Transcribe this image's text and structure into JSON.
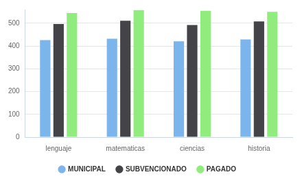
{
  "chart_data": {
    "type": "bar",
    "categories": [
      "lenguaje",
      "matematicas",
      "ciencias",
      "historia"
    ],
    "series": [
      {
        "name": "MUNICIPAL",
        "color": "#7cb5ec",
        "values": [
          426,
          432,
          421,
          429
        ]
      },
      {
        "name": "SUBVENCIONADO",
        "color": "#434348",
        "values": [
          497,
          511,
          492,
          508
        ]
      },
      {
        "name": "PAGADO",
        "color": "#90ed7d",
        "values": [
          545,
          558,
          555,
          550
        ]
      }
    ],
    "ylim": [
      0,
      560
    ],
    "yticks": [
      0,
      100,
      200,
      300,
      400,
      500
    ],
    "grid": true,
    "legend": "bottom"
  }
}
